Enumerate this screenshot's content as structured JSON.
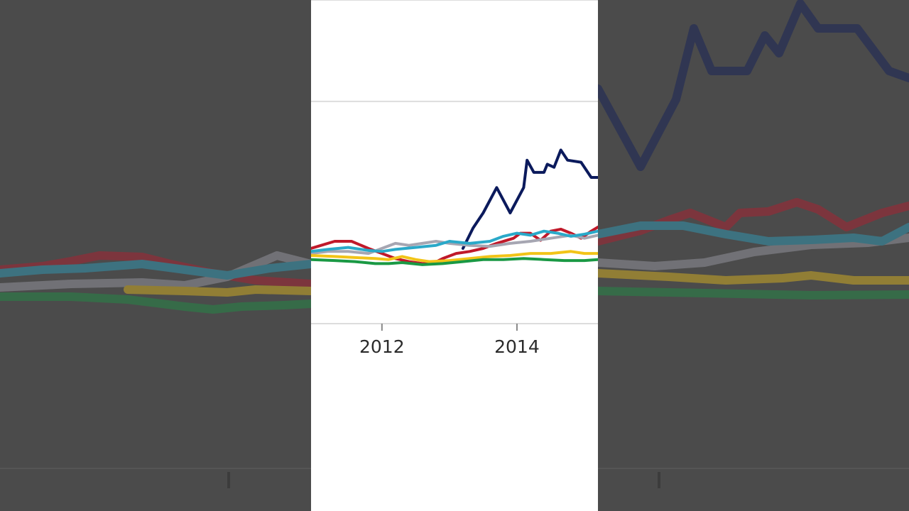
{
  "colors": {
    "series_navy": "#0b1a5c",
    "series_red": "#c0192a",
    "series_gray": "#a6a6b2",
    "series_cyan": "#2aa9c9",
    "series_yellow": "#f2c418",
    "series_green": "#1a9944",
    "grid": "#dddddd",
    "side_background": "#4b4b4b",
    "plot_background": "#ffffff"
  },
  "chart_data": {
    "type": "line",
    "title": "",
    "xlabel": "",
    "ylabel": "",
    "grid": true,
    "legend": "none",
    "xlim": [
      2010.95,
      2015.2
    ],
    "ylim": [
      -100,
      250
    ],
    "x_ticks": [
      2012,
      2014
    ],
    "x_tick_labels": [
      "2012",
      "2014"
    ],
    "y_gridlines": [
      150,
      250
    ],
    "series": [
      {
        "color": "#0b1a5c",
        "x": [
          2013.2,
          2013.35,
          2013.5,
          2013.7,
          2013.9,
          2014.1,
          2014.15,
          2014.25,
          2014.4,
          2014.45,
          2014.55,
          2014.65,
          2014.75,
          2014.95,
          2015.1,
          2015.2
        ],
        "y": [
          5,
          25,
          40,
          65,
          40,
          65,
          92,
          80,
          80,
          88,
          85,
          102,
          92,
          90,
          75,
          75
        ]
      },
      {
        "color": "#c0192a",
        "x": [
          2010.95,
          2011.1,
          2011.3,
          2011.55,
          2011.8,
          2012.0,
          2012.2,
          2012.4,
          2012.6,
          2012.75,
          2012.9,
          2013.1,
          2013.3,
          2013.5,
          2013.7,
          2013.95,
          2014.05,
          2014.2,
          2014.35,
          2014.5,
          2014.65,
          2014.8,
          2014.95,
          2015.1,
          2015.2
        ],
        "y": [
          5,
          8,
          12,
          12,
          5,
          0,
          -5,
          -8,
          -10,
          -10,
          -5,
          0,
          2,
          5,
          10,
          15,
          20,
          20,
          13,
          22,
          24,
          20,
          15,
          22,
          26
        ]
      },
      {
        "color": "#a6a6b2",
        "x": [
          2010.95,
          2011.2,
          2011.5,
          2011.8,
          2012.0,
          2012.2,
          2012.4,
          2012.6,
          2012.8,
          2013.0,
          2013.3,
          2013.6,
          2013.9,
          2014.2,
          2014.5,
          2014.8,
          2015.0,
          2015.2
        ],
        "y": [
          0,
          2,
          2,
          0,
          5,
          10,
          8,
          10,
          12,
          10,
          8,
          7,
          10,
          12,
          15,
          18,
          15,
          18
        ]
      },
      {
        "color": "#2aa9c9",
        "x": [
          2010.95,
          2011.2,
          2011.5,
          2011.8,
          2012.0,
          2012.2,
          2012.5,
          2012.8,
          2013.0,
          2013.3,
          2013.6,
          2013.8,
          2014.0,
          2014.2,
          2014.4,
          2014.6,
          2014.8,
          2015.0,
          2015.2
        ],
        "y": [
          2,
          4,
          6,
          3,
          2,
          4,
          6,
          8,
          12,
          10,
          12,
          17,
          20,
          18,
          22,
          20,
          17,
          19,
          22
        ]
      },
      {
        "color": "#f2c418",
        "x": [
          2010.95,
          2011.3,
          2011.6,
          2011.9,
          2012.1,
          2012.3,
          2012.5,
          2012.7,
          2013.0,
          2013.3,
          2013.6,
          2013.9,
          2014.2,
          2014.5,
          2014.8,
          2015.0,
          2015.2
        ],
        "y": [
          -2,
          -3,
          -4,
          -5,
          -6,
          -3,
          -6,
          -8,
          -7,
          -5,
          -3,
          -2,
          0,
          0,
          2,
          0,
          0
        ]
      },
      {
        "color": "#1a9944",
        "x": [
          2010.95,
          2011.3,
          2011.6,
          2011.9,
          2012.1,
          2012.3,
          2012.6,
          2012.9,
          2013.2,
          2013.5,
          2013.8,
          2014.1,
          2014.4,
          2014.7,
          2015.0,
          2015.2
        ],
        "y": [
          -6,
          -7,
          -8,
          -10,
          -10,
          -9,
          -11,
          -10,
          -8,
          -6,
          -6,
          -5,
          -6,
          -7,
          -7,
          -6
        ]
      }
    ]
  }
}
